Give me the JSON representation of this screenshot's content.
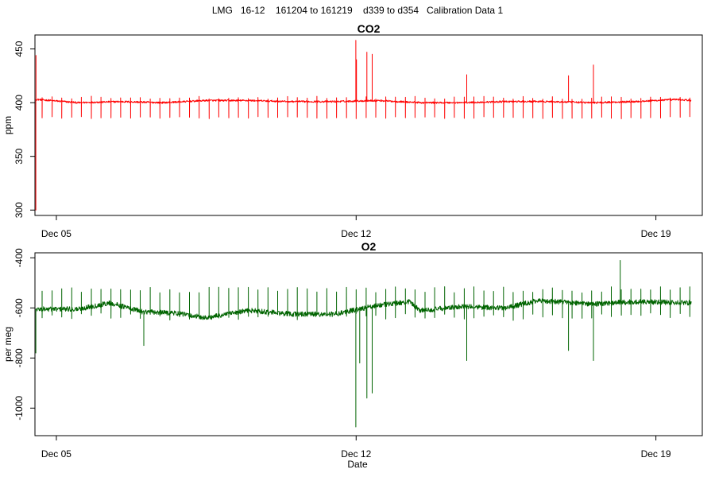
{
  "figure": {
    "title": "LMG   16-12    161204 to 161219    d339 to d354   Calibration Data 1",
    "xlabel": "Date"
  },
  "chart_data": [
    {
      "type": "line",
      "title": "CO2",
      "ylabel": "ppm",
      "xlabel": "",
      "xlim": [
        "2016-12-04 12:00",
        "2016-12-20 02:00"
      ],
      "ylim": [
        295,
        463
      ],
      "x_ticks": [
        "2016-12-05",
        "2016-12-12",
        "2016-12-19"
      ],
      "x_tick_labels": [
        "Dec 05",
        "Dec 12",
        "Dec 19"
      ],
      "y_ticks": [
        300,
        350,
        400,
        450
      ],
      "color": "#ff0000",
      "grid": false,
      "series": [
        {
          "baseline_segments": [
            [
              "2016-12-04 13:00",
              403
            ],
            [
              "2016-12-05 12:00",
              400
            ],
            [
              "2016-12-06 12:00",
              401
            ],
            [
              "2016-12-07 12:00",
              400
            ],
            [
              "2016-12-08 12:00",
              402
            ],
            [
              "2016-12-09 12:00",
              402
            ],
            [
              "2016-12-10 12:00",
              401
            ],
            [
              "2016-12-11 12:00",
              401
            ],
            [
              "2016-12-12 12:00",
              402
            ],
            [
              "2016-12-13 12:00",
              400
            ],
            [
              "2016-12-14 12:00",
              400
            ],
            [
              "2016-12-15 12:00",
              401
            ],
            [
              "2016-12-16 12:00",
              401
            ],
            [
              "2016-12-17 12:00",
              400
            ],
            [
              "2016-12-18 12:00",
              401
            ],
            [
              "2016-12-19 12:00",
              403
            ],
            [
              "2016-12-19 20:00",
              402
            ]
          ],
          "calibration_spike_interval_hours": 5.5,
          "calibration_spike_range": [
            385,
            406
          ],
          "events": [
            [
              "2016-12-04 12:30",
              300
            ],
            [
              "2016-12-04 12:35",
              444
            ],
            [
              "2016-12-11 23:50",
              458
            ],
            [
              "2016-12-12 00:10",
              440
            ],
            [
              "2016-12-12 06:00",
              447
            ],
            [
              "2016-12-12 09:00",
              445
            ],
            [
              "2016-12-14 14:00",
              426
            ],
            [
              "2016-12-16 23:00",
              425
            ],
            [
              "2016-12-17 13:00",
              435
            ]
          ]
        }
      ]
    },
    {
      "type": "line",
      "title": "O2",
      "ylabel": "per meg",
      "xlabel": "",
      "xlim": [
        "2016-12-04 12:00",
        "2016-12-20 02:00"
      ],
      "ylim": [
        -1110,
        -380
      ],
      "x_ticks": [
        "2016-12-05",
        "2016-12-12",
        "2016-12-19"
      ],
      "x_tick_labels": [
        "Dec 05",
        "Dec 12",
        "Dec 19"
      ],
      "y_ticks": [
        -1000,
        -800,
        -600,
        -400
      ],
      "color": "#006400",
      "grid": false,
      "series": [
        {
          "baseline_segments": [
            [
              "2016-12-04 13:00",
              -605
            ],
            [
              "2016-12-05 12:00",
              -605
            ],
            [
              "2016-12-06 06:00",
              -580
            ],
            [
              "2016-12-07 00:00",
              -615
            ],
            [
              "2016-12-07 18:00",
              -620
            ],
            [
              "2016-12-08 12:00",
              -640
            ],
            [
              "2016-12-09 12:00",
              -610
            ],
            [
              "2016-12-10 12:00",
              -625
            ],
            [
              "2016-12-11 12:00",
              -625
            ],
            [
              "2016-12-12 12:00",
              -590
            ],
            [
              "2016-12-13 06:00",
              -575
            ],
            [
              "2016-12-13 12:00",
              -610
            ],
            [
              "2016-12-14 12:00",
              -595
            ],
            [
              "2016-12-15 12:00",
              -600
            ],
            [
              "2016-12-16 06:00",
              -570
            ],
            [
              "2016-12-17 12:00",
              -585
            ],
            [
              "2016-12-18 12:00",
              -575
            ],
            [
              "2016-12-19 20:00",
              -580
            ]
          ],
          "calibration_spike_interval_hours": 5.5,
          "calibration_spike_range": [
            -650,
            -515
          ],
          "events": [
            [
              "2016-12-04 12:30",
              -780
            ],
            [
              "2016-12-07 01:00",
              -750
            ],
            [
              "2016-12-11 23:50",
              -1075
            ],
            [
              "2016-12-12 02:00",
              -820
            ],
            [
              "2016-12-12 06:00",
              -960
            ],
            [
              "2016-12-12 09:00",
              -940
            ],
            [
              "2016-12-14 14:00",
              -810
            ],
            [
              "2016-12-16 23:00",
              -770
            ],
            [
              "2016-12-17 13:00",
              -810
            ],
            [
              "2016-12-18 04:00",
              -410
            ]
          ]
        }
      ]
    }
  ]
}
